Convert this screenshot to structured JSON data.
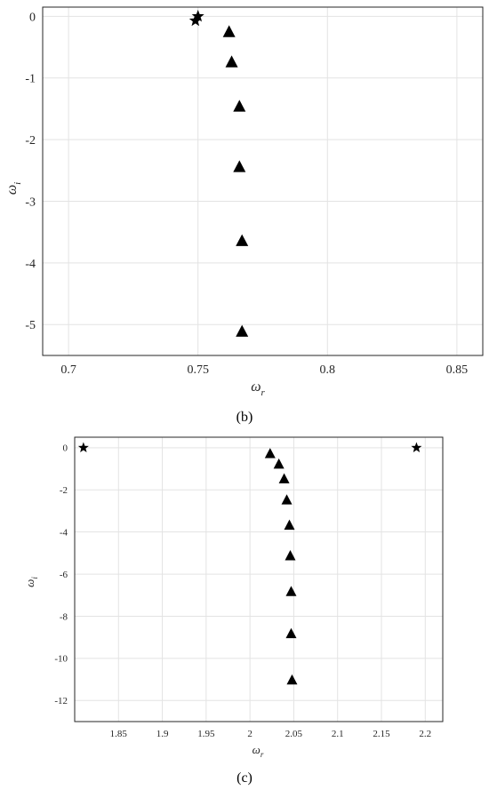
{
  "chart_data": [
    {
      "type": "scatter",
      "panel_label": "(b)",
      "xlabel": "ω",
      "xlabel_sub": "r",
      "ylabel": "ω",
      "ylabel_sub": "i",
      "xlim": [
        0.69,
        0.86
      ],
      "ylim": [
        -5.5,
        0.15
      ],
      "x_ticks": [
        "0.7",
        "0.75",
        "0.8",
        "0.85"
      ],
      "x_tick_values": [
        0.7,
        0.75,
        0.8,
        0.85
      ],
      "y_ticks": [
        "0",
        "-1",
        "-2",
        "-3",
        "-4",
        "-5"
      ],
      "y_tick_values": [
        0,
        -1,
        -2,
        -3,
        -4,
        -5
      ],
      "grid": true,
      "series": [
        {
          "marker": "star",
          "color": "#000000",
          "points": [
            [
              0.75,
              0.0
            ],
            [
              0.749,
              -0.07
            ]
          ]
        },
        {
          "marker": "triangle",
          "color": "#000000",
          "points": [
            [
              0.762,
              -0.24
            ],
            [
              0.763,
              -0.73
            ],
            [
              0.766,
              -1.45
            ],
            [
              0.766,
              -2.43
            ],
            [
              0.767,
              -3.63
            ],
            [
              0.767,
              -5.1
            ]
          ]
        }
      ]
    },
    {
      "type": "scatter",
      "panel_label": "(c)",
      "xlabel": "ω",
      "xlabel_sub": "r",
      "ylabel": "ω",
      "ylabel_sub": "i",
      "xlim": [
        1.8,
        2.22
      ],
      "ylim": [
        -13,
        0.5
      ],
      "x_ticks": [
        "1.85",
        "1.9",
        "1.95",
        "2",
        "2.05",
        "2.1",
        "2.15",
        "2.2"
      ],
      "x_tick_values": [
        1.85,
        1.9,
        1.95,
        2.0,
        2.05,
        2.1,
        2.15,
        2.2
      ],
      "y_ticks": [
        "0",
        "-2",
        "-4",
        "-6",
        "-8",
        "-10",
        "-12"
      ],
      "y_tick_values": [
        0,
        -2,
        -4,
        -6,
        -8,
        -10,
        -12
      ],
      "grid": true,
      "series": [
        {
          "marker": "star",
          "color": "#000000",
          "points": [
            [
              1.81,
              0.0
            ],
            [
              2.19,
              0.0
            ]
          ]
        },
        {
          "marker": "triangle",
          "color": "#000000",
          "points": [
            [
              2.023,
              -0.25
            ],
            [
              2.033,
              -0.75
            ],
            [
              2.039,
              -1.45
            ],
            [
              2.042,
              -2.45
            ],
            [
              2.045,
              -3.65
            ],
            [
              2.046,
              -5.1
            ],
            [
              2.047,
              -6.8
            ],
            [
              2.047,
              -8.8
            ],
            [
              2.048,
              -11.0
            ]
          ]
        }
      ]
    }
  ]
}
